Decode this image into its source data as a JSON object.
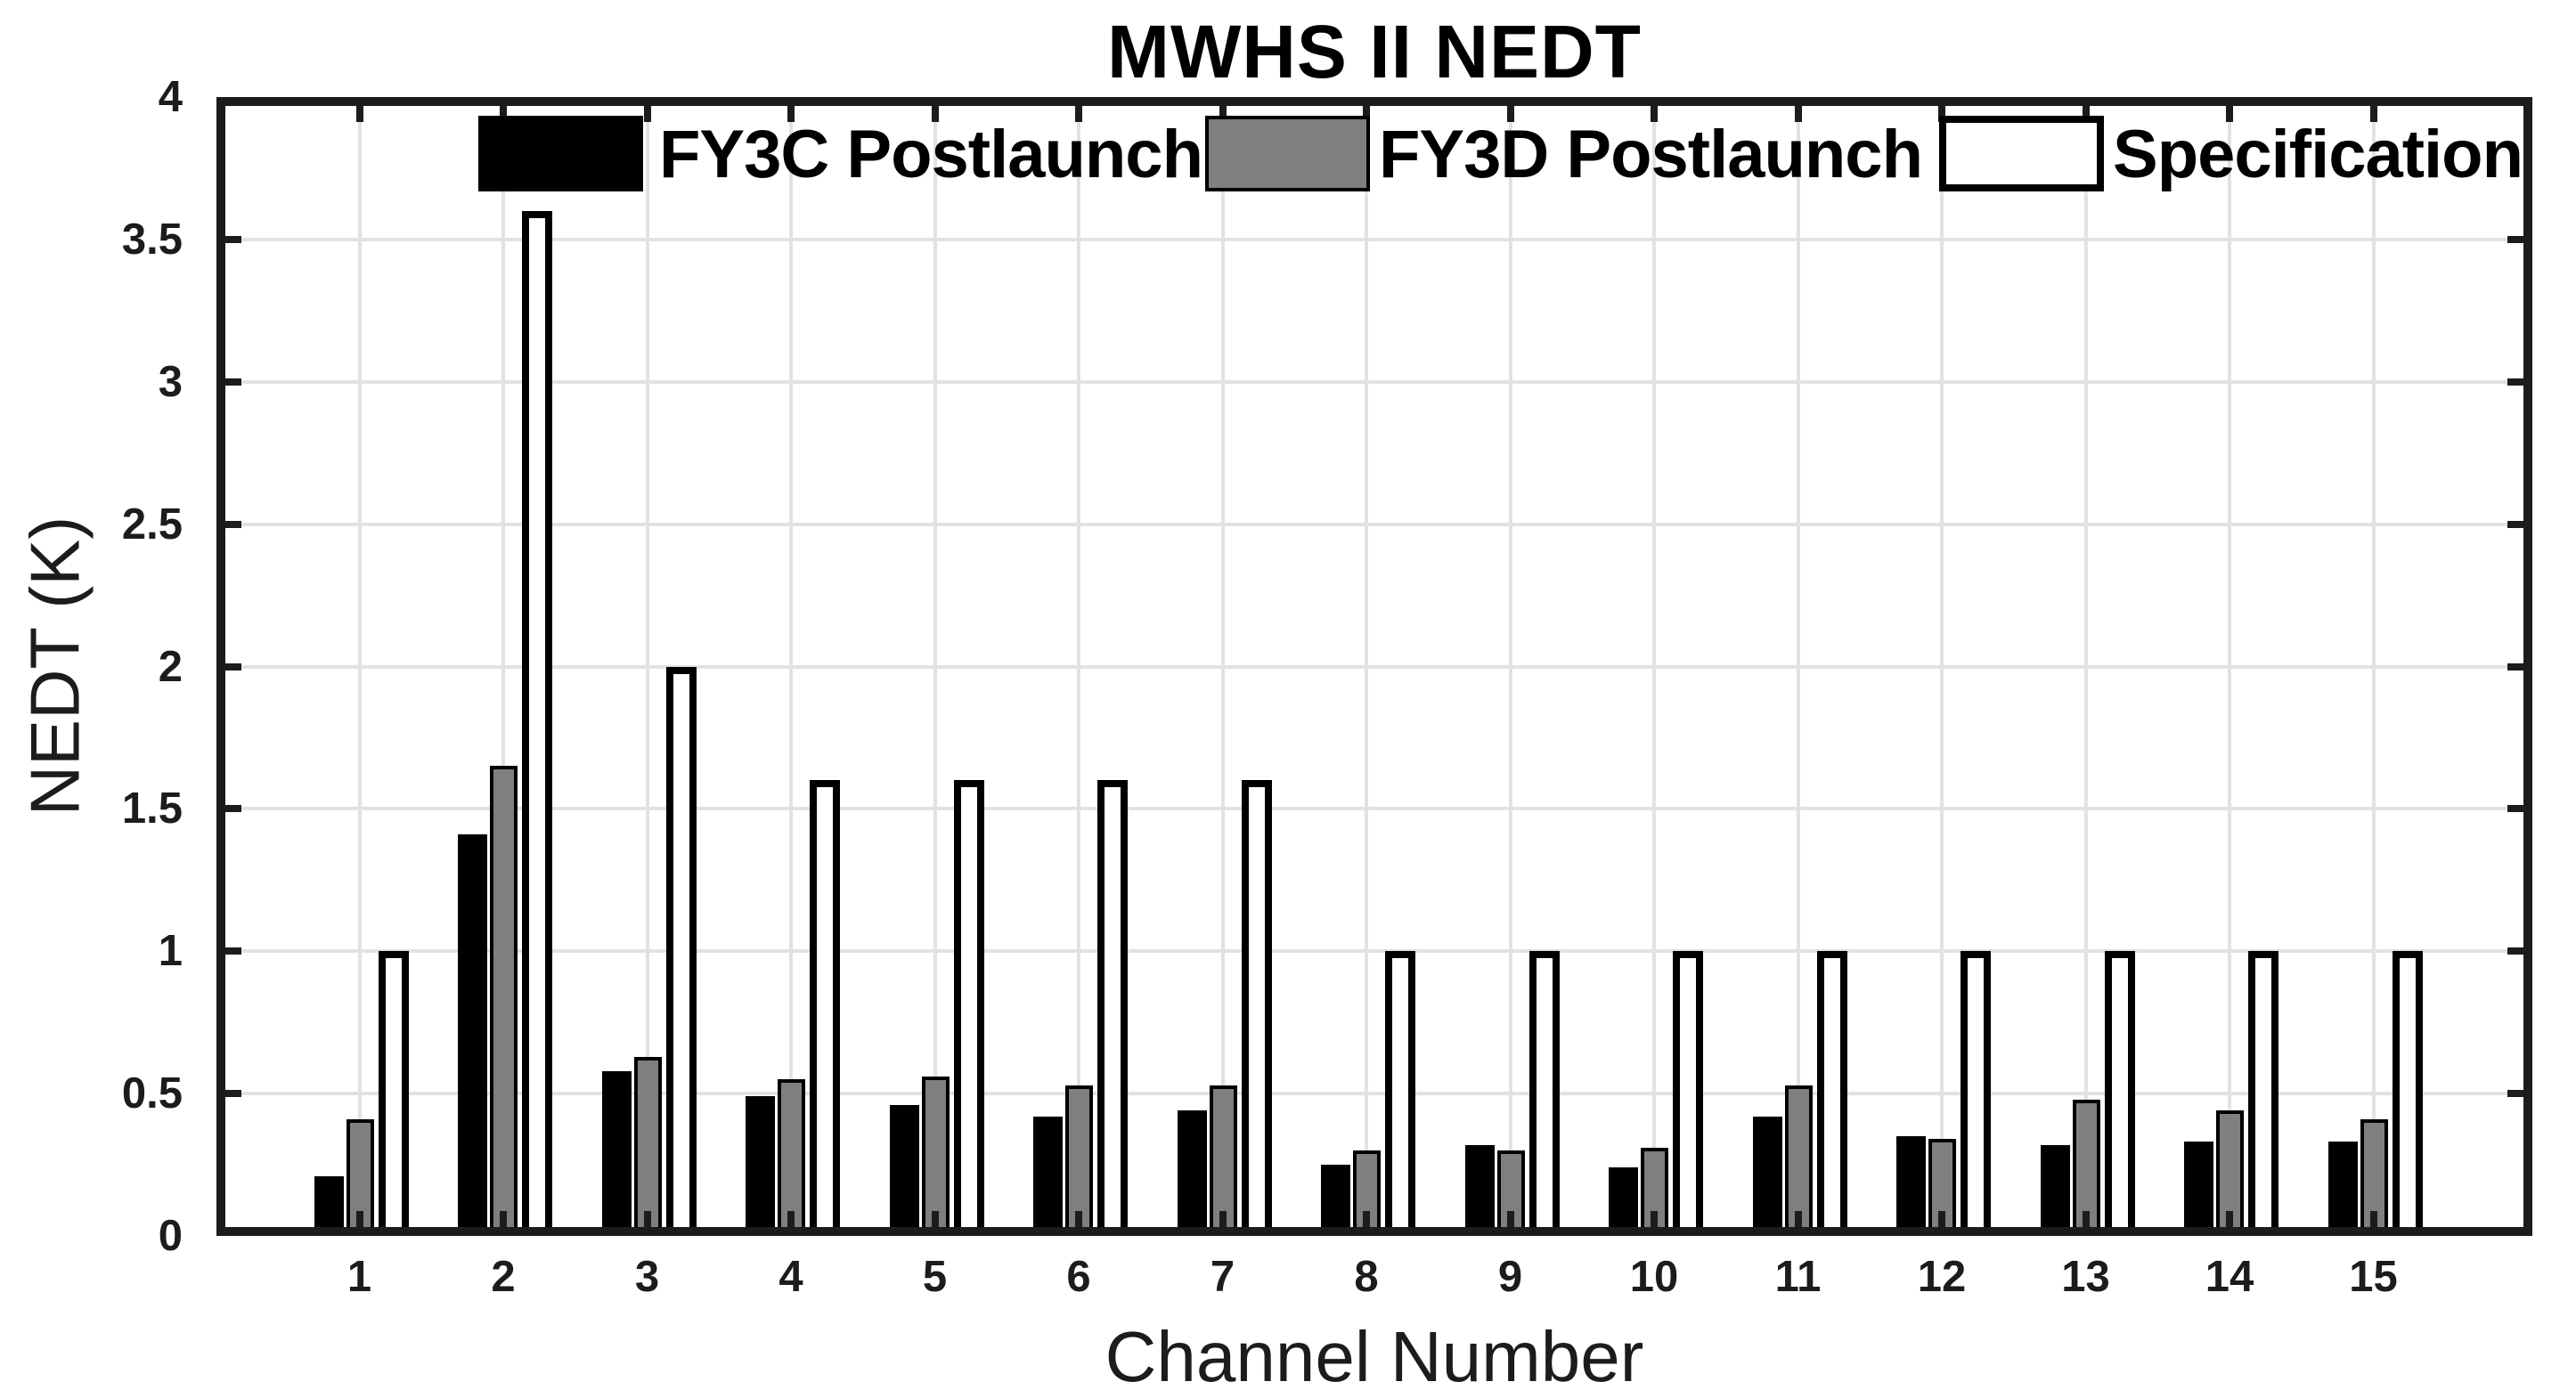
{
  "title": "MWHS II NEDT",
  "axes": {
    "x_label": "Channel Number",
    "y_label": "NEDT (K)",
    "y_tick_values": [
      0,
      0.5,
      1,
      1.5,
      2,
      2.5,
      3,
      3.5,
      4
    ],
    "y_tick_labels": [
      "0",
      "0.5",
      "1",
      "1.5",
      "2",
      "2.5",
      "3",
      "3.5",
      "4"
    ],
    "x_tick_labels": [
      "1",
      "2",
      "3",
      "4",
      "5",
      "6",
      "7",
      "8",
      "9",
      "10",
      "11",
      "12",
      "13",
      "14",
      "15"
    ]
  },
  "legend": [
    {
      "label": "FY3C Postlaunch",
      "color": "#000000",
      "border": "#000000"
    },
    {
      "label": "FY3D Postlaunch",
      "color": "#7f7f7f",
      "border": "#000000"
    },
    {
      "label": "Specification",
      "color": "#ffffff",
      "border": "#000000"
    }
  ],
  "colors": {
    "background": "#ffffff",
    "axis": "#1c1c1c",
    "grid": "#e2e2e2",
    "series_fy3c": "#000000",
    "series_fy3d": "#7f7f7f",
    "series_spec": "#ffffff"
  },
  "chart_data": {
    "type": "bar",
    "title": "MWHS II NEDT",
    "xlabel": "Channel Number",
    "ylabel": "NEDT (K)",
    "ylim": [
      0,
      4
    ],
    "grid": true,
    "legend_position": "top-inside",
    "categories": [
      1,
      2,
      3,
      4,
      5,
      6,
      7,
      8,
      9,
      10,
      11,
      12,
      13,
      14,
      15
    ],
    "series": [
      {
        "name": "FY3C Postlaunch",
        "key": "fy3c",
        "color": "#000000",
        "values": [
          0.21,
          1.41,
          0.58,
          0.49,
          0.46,
          0.42,
          0.44,
          0.25,
          0.32,
          0.24,
          0.42,
          0.35,
          0.32,
          0.33,
          0.33
        ]
      },
      {
        "name": "FY3D Postlaunch",
        "key": "fy3d",
        "color": "#7f7f7f",
        "values": [
          0.41,
          1.65,
          0.63,
          0.55,
          0.56,
          0.53,
          0.53,
          0.3,
          0.3,
          0.31,
          0.53,
          0.34,
          0.48,
          0.44,
          0.41
        ]
      },
      {
        "name": "Specification",
        "key": "spec",
        "color": "#ffffff",
        "values": [
          1.0,
          3.6,
          2.0,
          1.6,
          1.6,
          1.6,
          1.6,
          1.0,
          1.0,
          1.0,
          1.0,
          1.0,
          1.0,
          1.0,
          1.0
        ]
      }
    ]
  }
}
